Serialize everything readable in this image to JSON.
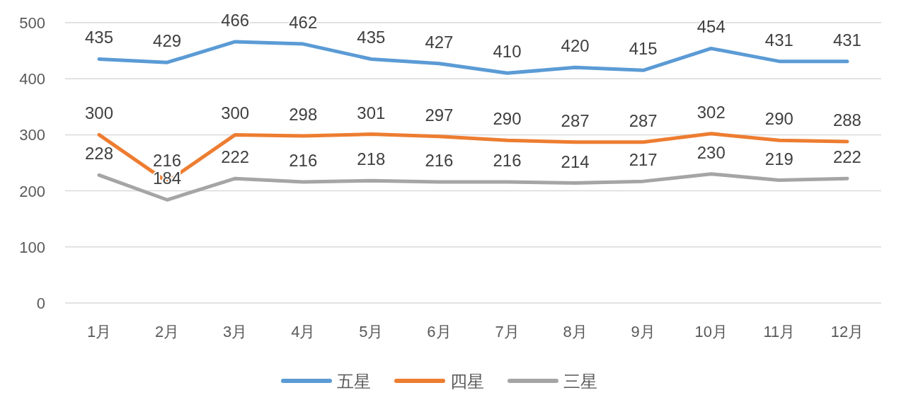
{
  "chart_data": {
    "type": "line",
    "categories": [
      "1月",
      "2月",
      "3月",
      "4月",
      "5月",
      "6月",
      "7月",
      "8月",
      "9月",
      "10月",
      "11月",
      "12月"
    ],
    "series": [
      {
        "name": "五星",
        "color": "#5b9bd5",
        "values": [
          435,
          429,
          466,
          462,
          435,
          427,
          410,
          420,
          415,
          454,
          431,
          431
        ]
      },
      {
        "name": "四星",
        "color": "#ed7d31",
        "values": [
          300,
          216,
          300,
          298,
          301,
          297,
          290,
          287,
          287,
          302,
          290,
          288
        ]
      },
      {
        "name": "三星",
        "color": "#a5a5a5",
        "values": [
          228,
          184,
          222,
          216,
          218,
          216,
          216,
          214,
          217,
          230,
          219,
          222
        ]
      }
    ],
    "ylim": [
      0,
      500
    ],
    "yticks": [
      0,
      100,
      200,
      300,
      400,
      500
    ],
    "grid": "y",
    "legend": "bottom",
    "data_labels": true,
    "marker": "none",
    "line_style": "solid"
  }
}
